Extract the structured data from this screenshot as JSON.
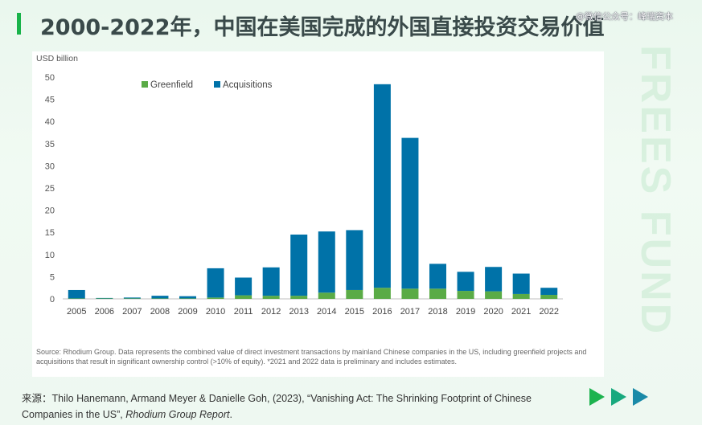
{
  "header": {
    "title": "2000-2022年，中国在美国完成的外国直接投资交易价值",
    "wechat_handle": "@微信公众号：峰瑞资本"
  },
  "watermark": "FREES FUND",
  "colors": {
    "greenfield": "#5aab46",
    "acquisitions": "#0072a8",
    "accent": "#19b34a"
  },
  "chart_data": {
    "type": "bar",
    "stacked": true,
    "unit_label": "USD billion",
    "categories": [
      "2005",
      "2006",
      "2007",
      "2008",
      "2009",
      "2010",
      "2011",
      "2012",
      "2013",
      "2014",
      "2015",
      "2016",
      "2017",
      "2018",
      "2019",
      "2020",
      "2021",
      "2022"
    ],
    "series": [
      {
        "name": "Greenfield",
        "values": [
          0.1,
          0.1,
          0.1,
          0.1,
          0.1,
          0.3,
          0.8,
          0.7,
          0.7,
          1.4,
          2.0,
          2.5,
          2.3,
          2.3,
          1.8,
          1.7,
          1.1,
          0.9
        ]
      },
      {
        "name": "Acquisitions",
        "values": [
          1.9,
          0.1,
          0.2,
          0.6,
          0.5,
          6.6,
          4.0,
          6.4,
          13.8,
          13.8,
          13.5,
          45.9,
          34.0,
          5.6,
          4.3,
          5.5,
          4.6,
          1.6
        ]
      }
    ],
    "yticks": [
      0,
      5,
      10,
      15,
      20,
      25,
      30,
      35,
      40,
      45,
      50
    ],
    "ylim": [
      0,
      50
    ],
    "legend_position": "top-left",
    "grid": false
  },
  "chart_note": "Source: Rhodium Group. Data represents the combined value of direct investment transactions by mainland Chinese companies in the US, including greenfield projects and acquisitions that result in significant ownership control (>10% of equity). *2021 and 2022 data is preliminary and includes estimates.",
  "source": {
    "prefix": "来源：",
    "text": "Thilo Hanemann, Armand Meyer & Danielle Goh, (2023), “Vanishing Act: The Shrinking Footprint of Chinese Companies in the US”, ",
    "publication": "Rhodium Group Report",
    "suffix": "."
  }
}
